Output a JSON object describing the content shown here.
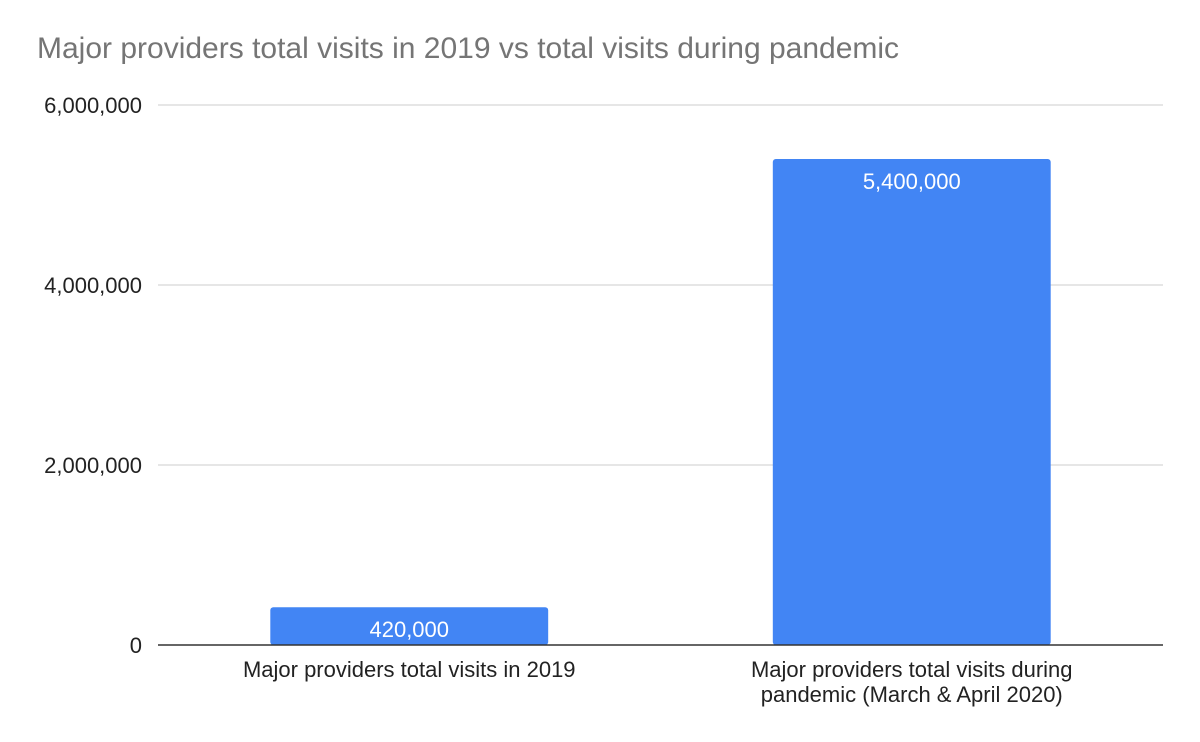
{
  "chart_data": {
    "type": "bar",
    "title": "Major providers total visits in 2019 vs total visits during pandemic",
    "categories": [
      [
        "Major providers total visits in 2019"
      ],
      [
        "Major providers total visits during",
        "pandemic (March & April 2020)"
      ]
    ],
    "values": [
      420000,
      5400000
    ],
    "data_labels": [
      "420,000",
      "5,400,000"
    ],
    "ylim": [
      0,
      6000000
    ],
    "yticks": [
      {
        "value": 0,
        "label": "0"
      },
      {
        "value": 2000000,
        "label": "2,000,000"
      },
      {
        "value": 4000000,
        "label": "4,000,000"
      },
      {
        "value": 6000000,
        "label": "6,000,000"
      }
    ],
    "grid": true,
    "legend": "none",
    "bar_color": "#4285F4",
    "grid_color": "#CCCCCC",
    "axis_color": "#333333"
  }
}
